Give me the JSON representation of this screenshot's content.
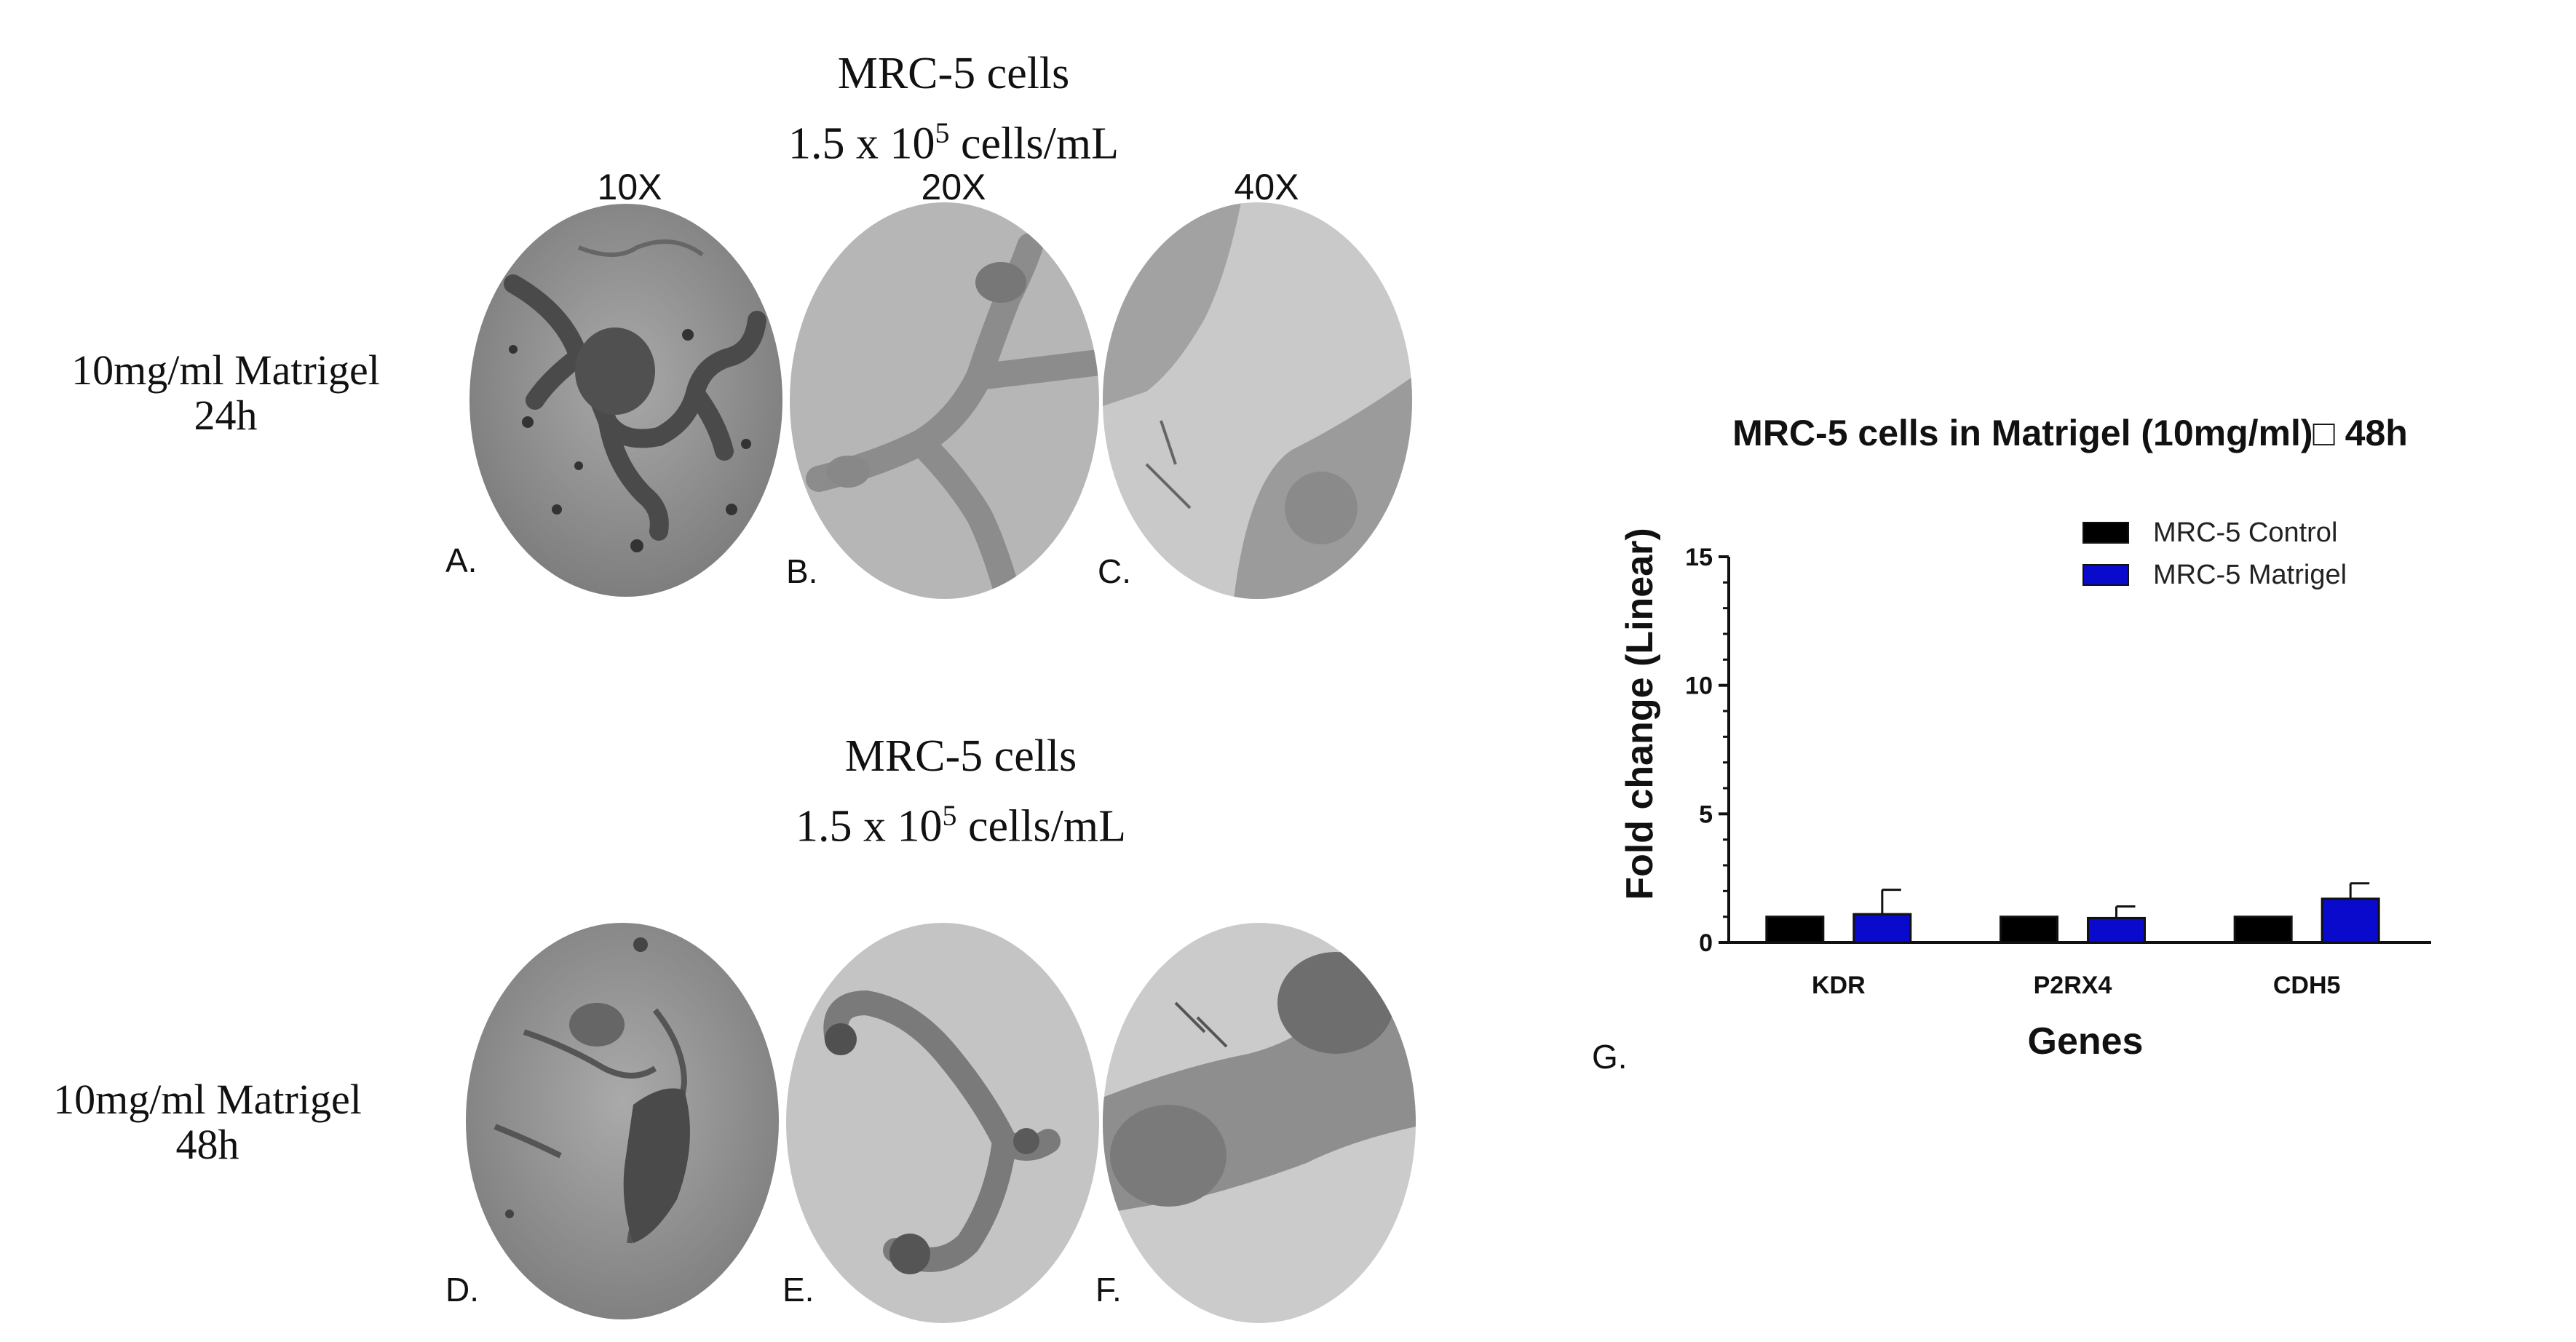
{
  "top": {
    "title_line1": "MRC-5 cells",
    "title_line2_prefix": "1.5 x 10",
    "title_line2_exp": "5",
    "title_line2_suffix": " cells/mL",
    "magnifications": [
      "10X",
      "20X",
      "40X"
    ],
    "row_label_line1": "10mg/ml Matrigel",
    "row_label_line2": "24h",
    "panels": [
      "A.",
      "B.",
      "C."
    ]
  },
  "bottom": {
    "title_line1": "MRC-5 cells",
    "title_line2_prefix": "1.5 x 10",
    "title_line2_exp": "5",
    "title_line2_suffix": " cells/mL",
    "row_label_line1": "10mg/ml Matrigel",
    "row_label_line2": "48h",
    "panels": [
      "D.",
      "E.",
      "F."
    ]
  },
  "chart_panel_label": "G.",
  "chart_data": {
    "type": "bar",
    "title": "MRC-5 cells in Matrigel (10mg/ml)□ 48h",
    "xlabel": "Genes",
    "ylabel": "Fold change (Linear)",
    "categories": [
      "KDR",
      "P2RX4",
      "CDH5"
    ],
    "ylim": [
      0,
      15
    ],
    "yticks": [
      0,
      5,
      10,
      15
    ],
    "legend_position": "top-right",
    "series": [
      {
        "name": "MRC-5 Control",
        "color": "#000000",
        "values": [
          1.0,
          1.0,
          1.0
        ],
        "errors": [
          0,
          0,
          0
        ]
      },
      {
        "name": "MRC-5 Matrigel",
        "color": "#0a0acc",
        "values": [
          1.1,
          0.95,
          1.7
        ],
        "errors": [
          0.95,
          0.45,
          0.6
        ]
      }
    ]
  }
}
